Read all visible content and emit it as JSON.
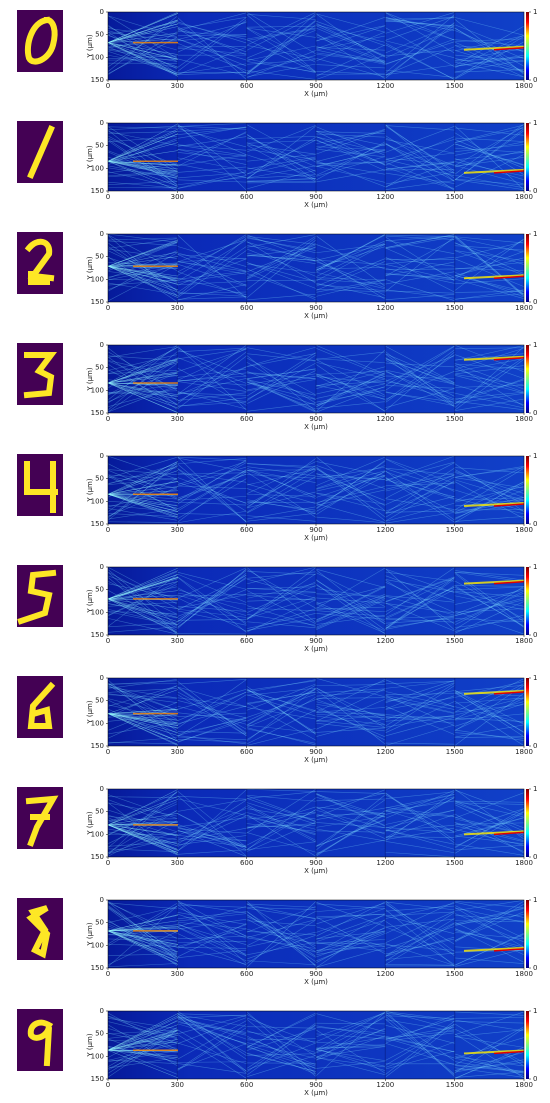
{
  "chart_data": [
    {
      "type": "heatmap",
      "xlabel": "X (μm)",
      "ylabel": "Y (μm)",
      "xlim": [
        0,
        1800
      ],
      "xticks": [
        0,
        300,
        600,
        900,
        1200,
        1500,
        1800
      ],
      "ylim": [
        150,
        0
      ],
      "yticks": [
        0,
        50,
        100,
        150
      ],
      "colorbar": {
        "lim": [
          0,
          1
        ],
        "ticks": [
          0,
          1
        ]
      }
    },
    {
      "type": "heatmap",
      "xlabel": "X (μm)",
      "ylabel": "Y (μm)",
      "xlim": [
        0,
        1800
      ],
      "xticks": [
        0,
        300,
        600,
        900,
        1200,
        1500,
        1800
      ],
      "ylim": [
        150,
        0
      ],
      "yticks": [
        0,
        50,
        100,
        150
      ],
      "colorbar": {
        "lim": [
          0,
          1
        ],
        "ticks": [
          0,
          1
        ]
      }
    },
    {
      "type": "heatmap",
      "xlabel": "X (μm)",
      "ylabel": "Y (μm)",
      "xlim": [
        0,
        1800
      ],
      "xticks": [
        0,
        300,
        600,
        900,
        1200,
        1500,
        1800
      ],
      "ylim": [
        150,
        0
      ],
      "yticks": [
        0,
        50,
        100,
        150
      ],
      "colorbar": {
        "lim": [
          0,
          1
        ],
        "ticks": [
          0,
          1
        ]
      }
    },
    {
      "type": "heatmap",
      "xlabel": "X (μm)",
      "ylabel": "Y (μm)",
      "xlim": [
        0,
        1800
      ],
      "xticks": [
        0,
        300,
        600,
        900,
        1200,
        1500,
        1800
      ],
      "ylim": [
        150,
        0
      ],
      "yticks": [
        0,
        50,
        100,
        150
      ],
      "colorbar": {
        "lim": [
          0,
          1
        ],
        "ticks": [
          0,
          1
        ]
      }
    },
    {
      "type": "heatmap",
      "xlabel": "X (μm)",
      "ylabel": "Y (μm)",
      "xlim": [
        0,
        1800
      ],
      "xticks": [
        0,
        300,
        600,
        900,
        1200,
        1500,
        1800
      ],
      "ylim": [
        150,
        0
      ],
      "yticks": [
        0,
        50,
        100,
        150
      ],
      "colorbar": {
        "lim": [
          0,
          1
        ],
        "ticks": [
          0,
          1
        ]
      }
    },
    {
      "type": "heatmap",
      "xlabel": "X (μm)",
      "ylabel": "Y (μm)",
      "xlim": [
        0,
        1800
      ],
      "xticks": [
        0,
        300,
        600,
        900,
        1200,
        1500,
        1800
      ],
      "ylim": [
        150,
        0
      ],
      "yticks": [
        0,
        50,
        100,
        150
      ],
      "colorbar": {
        "lim": [
          0,
          1
        ],
        "ticks": [
          0,
          1
        ]
      }
    },
    {
      "type": "heatmap",
      "xlabel": "X (μm)",
      "ylabel": "Y (μm)",
      "xlim": [
        0,
        1800
      ],
      "xticks": [
        0,
        300,
        600,
        900,
        1200,
        1500,
        1800
      ],
      "ylim": [
        150,
        0
      ],
      "yticks": [
        0,
        50,
        100,
        150
      ],
      "colorbar": {
        "lim": [
          0,
          1
        ],
        "ticks": [
          0,
          1
        ]
      }
    },
    {
      "type": "heatmap",
      "xlabel": "X (μm)",
      "ylabel": "Y (μm)",
      "xlim": [
        0,
        1800
      ],
      "xticks": [
        0,
        300,
        600,
        900,
        1200,
        1500,
        1800
      ],
      "ylim": [
        150,
        0
      ],
      "yticks": [
        0,
        50,
        100,
        150
      ],
      "colorbar": {
        "lim": [
          0,
          1
        ],
        "ticks": [
          0,
          1
        ]
      }
    },
    {
      "type": "heatmap",
      "xlabel": "X (μm)",
      "ylabel": "Y (μm)",
      "xlim": [
        0,
        1800
      ],
      "xticks": [
        0,
        300,
        600,
        900,
        1200,
        1500,
        1800
      ],
      "ylim": [
        150,
        0
      ],
      "yticks": [
        0,
        50,
        100,
        150
      ],
      "colorbar": {
        "lim": [
          0,
          1
        ],
        "ticks": [
          0,
          1
        ]
      }
    },
    {
      "type": "heatmap",
      "xlabel": "X (μm)",
      "ylabel": "Y (μm)",
      "xlim": [
        0,
        1800
      ],
      "xticks": [
        0,
        300,
        600,
        900,
        1200,
        1500,
        1800
      ],
      "ylim": [
        150,
        0
      ],
      "yticks": [
        0,
        50,
        100,
        150
      ],
      "colorbar": {
        "lim": [
          0,
          1
        ],
        "ticks": [
          0,
          1
        ]
      }
    }
  ]
}
